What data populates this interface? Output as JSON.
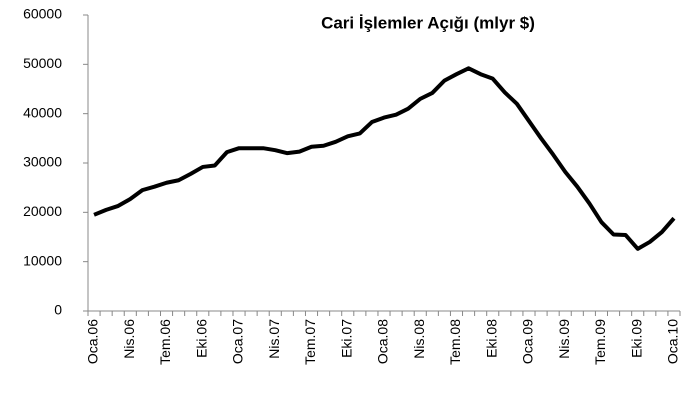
{
  "chart_data": {
    "type": "line",
    "title": "Cari İşlemler Açığı (mlyr $)",
    "categories": [
      "Oca.06",
      null,
      null,
      "Nis.06",
      null,
      null,
      "Tem.06",
      null,
      null,
      "Eki.06",
      null,
      null,
      "Oca.07",
      null,
      null,
      "Nis.07",
      null,
      null,
      "Tem.07",
      null,
      null,
      "Eki.07",
      null,
      null,
      "Oca.08",
      null,
      null,
      "Nis.08",
      null,
      null,
      "Tem.08",
      null,
      null,
      "Eki.08",
      null,
      null,
      "Oca.09",
      null,
      null,
      "Nis.09",
      null,
      null,
      "Tem.09",
      null,
      null,
      "Eki.09",
      null,
      null,
      "Oca.10"
    ],
    "series": [
      {
        "color": "#000000",
        "values": [
          19500,
          20500,
          21300,
          22700,
          24500,
          25200,
          26000,
          26500,
          27800,
          29200,
          29500,
          32200,
          33000,
          33000,
          33000,
          32600,
          32000,
          32300,
          33300,
          33500,
          34300,
          35400,
          36000,
          38300,
          39200,
          39800,
          41000,
          43000,
          44200,
          46700,
          48000,
          49200,
          48000,
          47100,
          44300,
          42000,
          38500,
          35000,
          31700,
          28200,
          25200,
          21800,
          18000,
          15500,
          15400,
          12600,
          14000,
          16000,
          18800
        ]
      }
    ],
    "ylim": [
      0,
      60000
    ],
    "yticks": [
      0,
      10000,
      20000,
      30000,
      40000,
      50000,
      60000
    ],
    "grid": false
  }
}
